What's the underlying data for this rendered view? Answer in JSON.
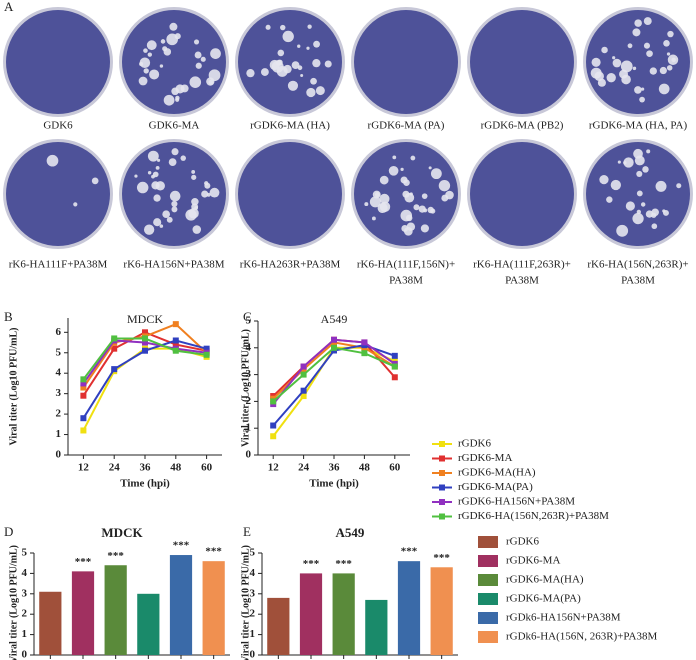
{
  "panel_labels": [
    "A",
    "B",
    "C",
    "D",
    "E"
  ],
  "plates": [
    {
      "label": [
        "GDK6"
      ]
    },
    {
      "label": [
        "GDK6-MA"
      ]
    },
    {
      "label": [
        "rGDK6-MA (HA)"
      ]
    },
    {
      "label": [
        "rGDK6-MA (PA)"
      ]
    },
    {
      "label": [
        "rGDK6-MA (PB2)"
      ]
    },
    {
      "label": [
        "rGDK6-MA (HA, PA)"
      ]
    },
    {
      "label": [
        "rK6-HA111F+PA38M"
      ]
    },
    {
      "label": [
        "rK6-HA156N+PA38M"
      ]
    },
    {
      "label": [
        "rK6-HA263R+PA38M"
      ]
    },
    {
      "label": [
        "rK6-HA(111F,156N)+",
        "PA38M"
      ]
    },
    {
      "label": [
        "rK6-HA(111F,263R)+",
        "PA38M"
      ]
    },
    {
      "label": [
        "rK6-HA(156N,263R)+",
        "PA38M"
      ]
    }
  ],
  "chart_data": [
    {
      "type": "line",
      "title": "MDCK",
      "x_label": "Time (hpi)",
      "y_label": "Viral titer (Log10 PFU/mL)",
      "x": [
        12,
        24,
        36,
        48,
        60
      ],
      "xlim": [
        6,
        66
      ],
      "xticks": [
        12,
        24,
        36,
        48,
        60
      ],
      "ylim": [
        0,
        6.7
      ],
      "yticks": [
        0,
        1,
        2,
        3,
        4,
        5,
        6
      ],
      "series": [
        {
          "name": "rGDK6",
          "color": "#f0e010",
          "values": [
            1.2,
            4.1,
            5.2,
            5.2,
            4.8
          ]
        },
        {
          "name": "rGDK6-MA",
          "color": "#e03030",
          "values": [
            2.9,
            5.2,
            6.0,
            5.4,
            5.1
          ]
        },
        {
          "name": "rGDK6-MA(HA)",
          "color": "#f08020",
          "values": [
            3.3,
            5.5,
            5.8,
            6.4,
            5.0
          ]
        },
        {
          "name": "rGDK6-MA(PA)",
          "color": "#3040c0",
          "values": [
            1.8,
            4.2,
            5.1,
            5.6,
            5.2
          ]
        },
        {
          "name": "rGDK6-HA156N+PA38M",
          "color": "#9030c0",
          "values": [
            3.5,
            5.6,
            5.5,
            5.2,
            5.0
          ]
        },
        {
          "name": "rGDK6-HA(156N,263R)+PA38M",
          "color": "#50c040",
          "values": [
            3.7,
            5.7,
            5.7,
            5.1,
            4.9
          ]
        }
      ]
    },
    {
      "type": "line",
      "title": "A549",
      "x_label": "Time (hpi)",
      "y_label": "Viral titer (Log10 PFU/mL)",
      "x": [
        12,
        24,
        36,
        48,
        60
      ],
      "xlim": [
        6,
        66
      ],
      "xticks": [
        12,
        24,
        36,
        48,
        60
      ],
      "ylim": [
        0,
        5
      ],
      "yticks": [
        0,
        1,
        2,
        3,
        4,
        5
      ],
      "legend": "right",
      "series": [
        {
          "name": "rGDK6",
          "color": "#f0e010",
          "values": [
            0.7,
            2.2,
            4.0,
            4.0,
            3.5
          ]
        },
        {
          "name": "rGDK6-MA",
          "color": "#e03030",
          "values": [
            2.2,
            3.3,
            4.3,
            4.2,
            2.9
          ]
        },
        {
          "name": "rGDK6-MA(HA)",
          "color": "#f08020",
          "values": [
            2.1,
            3.2,
            4.2,
            4.0,
            3.3
          ]
        },
        {
          "name": "rGDK6-MA(PA)",
          "color": "#3040c0",
          "values": [
            1.1,
            2.4,
            3.9,
            4.1,
            3.7
          ]
        },
        {
          "name": "rGDK6-HA156N+PA38M",
          "color": "#9030c0",
          "values": [
            1.9,
            3.3,
            4.3,
            4.2,
            3.4
          ]
        },
        {
          "name": "rGDK6-HA(156N,263R)+PA38M",
          "color": "#50c040",
          "values": [
            2.0,
            3.0,
            4.0,
            3.8,
            3.3
          ]
        }
      ]
    },
    {
      "type": "bar",
      "title": "MDCK",
      "y_label": "Viral titer (Log10 PFU/mL)",
      "ylim": [
        0,
        5
      ],
      "yticks": [
        0,
        1,
        2,
        3,
        4,
        5
      ],
      "values": [
        3.1,
        4.1,
        4.4,
        3.0,
        4.9,
        4.6
      ],
      "significance": [
        null,
        "***",
        "***",
        null,
        "***",
        "***"
      ],
      "colors": [
        "#a0503a",
        "#a03060",
        "#5a8a3a",
        "#1a8a6a",
        "#3a6aa8",
        "#f09050"
      ]
    },
    {
      "type": "bar",
      "title": "A549",
      "y_label": "Viral titer (Log10 PFU/mL)",
      "ylim": [
        0,
        5
      ],
      "yticks": [
        0,
        1,
        2,
        3,
        4,
        5
      ],
      "values": [
        2.8,
        4.0,
        4.0,
        2.7,
        4.6,
        4.3
      ],
      "significance": [
        null,
        "***",
        "***",
        null,
        "***",
        "***"
      ],
      "colors": [
        "#a0503a",
        "#a03060",
        "#5a8a3a",
        "#1a8a6a",
        "#3a6aa8",
        "#f09050"
      ],
      "legend": "right",
      "names": [
        "rGDK6",
        "rGDK6-MA",
        "rGDK6-MA(HA)",
        "rGDK6-MA(PA)",
        "rGDk6-HA156N+PA38M",
        "rGDk6-HA(156N, 263R)+PA38M"
      ]
    }
  ]
}
